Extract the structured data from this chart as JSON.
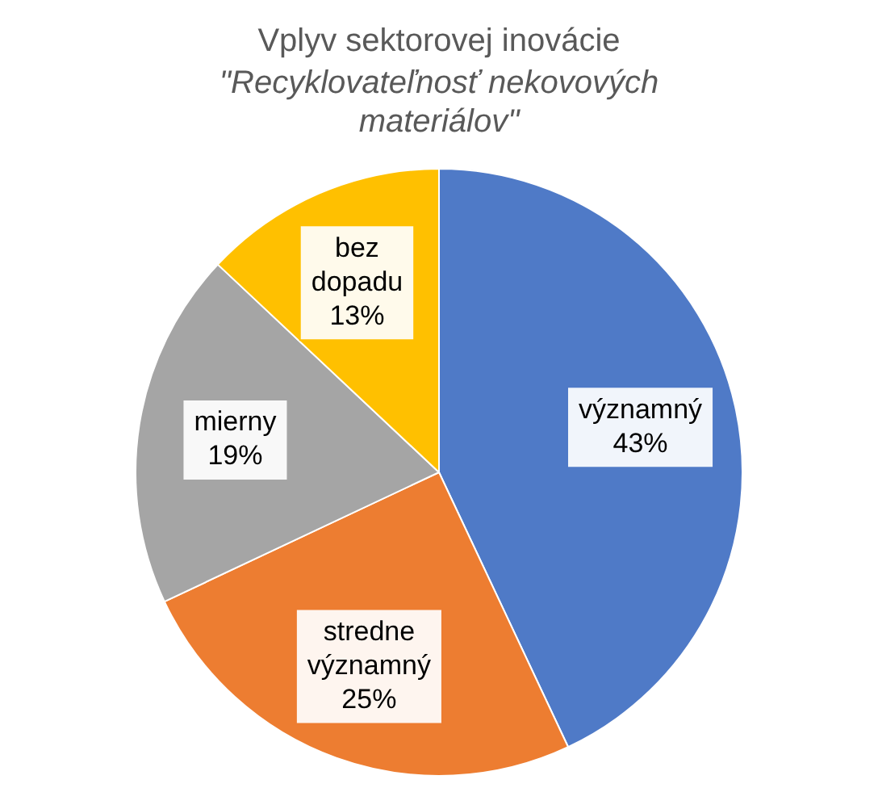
{
  "chart_data": {
    "type": "pie",
    "title": "Vplyv sektorovej inovácie",
    "subtitle": "\"Recyklovateľnosť nekovových materiálov\"",
    "categories": [
      "významný",
      "stredne významný",
      "mierny",
      "bez dopadu"
    ],
    "values": [
      43,
      25,
      19,
      13
    ],
    "colors": [
      "#4f7ac7",
      "#ed7d31",
      "#a5a5a5",
      "#ffc000"
    ],
    "value_labels": [
      "43%",
      "25%",
      "19%",
      "13%"
    ],
    "legend": false
  }
}
